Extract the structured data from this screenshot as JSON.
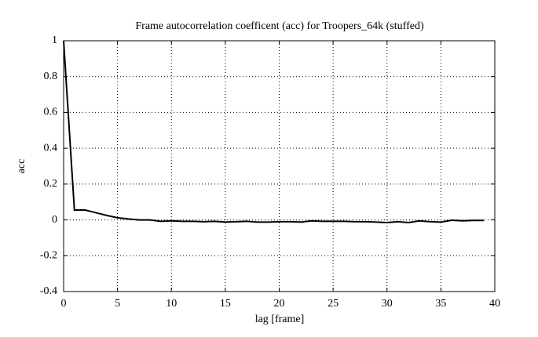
{
  "chart_data": {
    "type": "line",
    "title": "Frame autocorrelation coefficent (acc) for Troopers_64k (stuffed)",
    "x_label": "lag [frame]",
    "y_label": "acc",
    "x": [
      0,
      1,
      2,
      3,
      4,
      5,
      6,
      7,
      8,
      9,
      10,
      11,
      12,
      13,
      14,
      15,
      16,
      17,
      18,
      19,
      20,
      21,
      22,
      23,
      24,
      25,
      26,
      27,
      28,
      29,
      30,
      31,
      32,
      33,
      34,
      35,
      36,
      37,
      38,
      39
    ],
    "series": [
      {
        "color": "#000000",
        "values": [
          1,
          0.055,
          0.055,
          0.04,
          0.025,
          0.012,
          0.005,
          0,
          0,
          -0.008,
          -0.005,
          -0.008,
          -0.008,
          -0.01,
          -0.008,
          -0.012,
          -0.01,
          -0.008,
          -0.012,
          -0.012,
          -0.01,
          -0.01,
          -0.012,
          -0.005,
          -0.008,
          -0.008,
          -0.008,
          -0.01,
          -0.01,
          -0.012,
          -0.015,
          -0.01,
          -0.015,
          -0.005,
          -0.01,
          -0.012,
          -0.002,
          -0.005,
          -0.003,
          -0.003
        ]
      }
    ],
    "xlim": [
      0,
      40
    ],
    "xticks": [
      0,
      5,
      10,
      15,
      20,
      25,
      30,
      35,
      40
    ],
    "ylim": [
      -0.4,
      1
    ],
    "yticks": [
      -0.4,
      -0.2,
      0,
      0.2,
      0.4,
      0.6,
      0.8,
      1
    ],
    "grid": true
  }
}
